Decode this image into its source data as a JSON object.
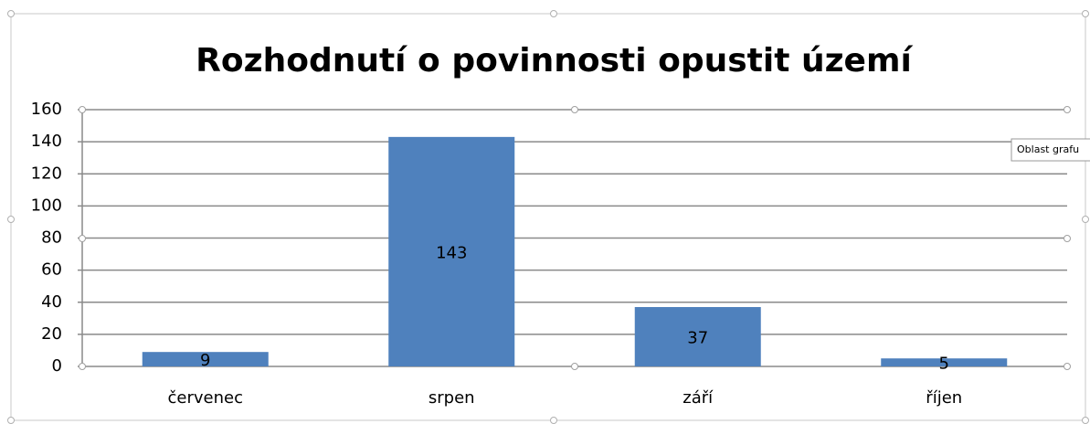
{
  "chart_data": {
    "type": "bar",
    "title": "Rozhodnutí o povinnosti opustit území",
    "categories": [
      "červenec",
      "srpen",
      "září",
      "říjen"
    ],
    "values": [
      9,
      143,
      37,
      5
    ],
    "color": "#4f81bd",
    "ylim": [
      0,
      160
    ],
    "yticks": [
      0,
      20,
      40,
      60,
      80,
      100,
      120,
      140,
      160
    ],
    "grid": true,
    "tooltip": "Oblast grafu"
  }
}
